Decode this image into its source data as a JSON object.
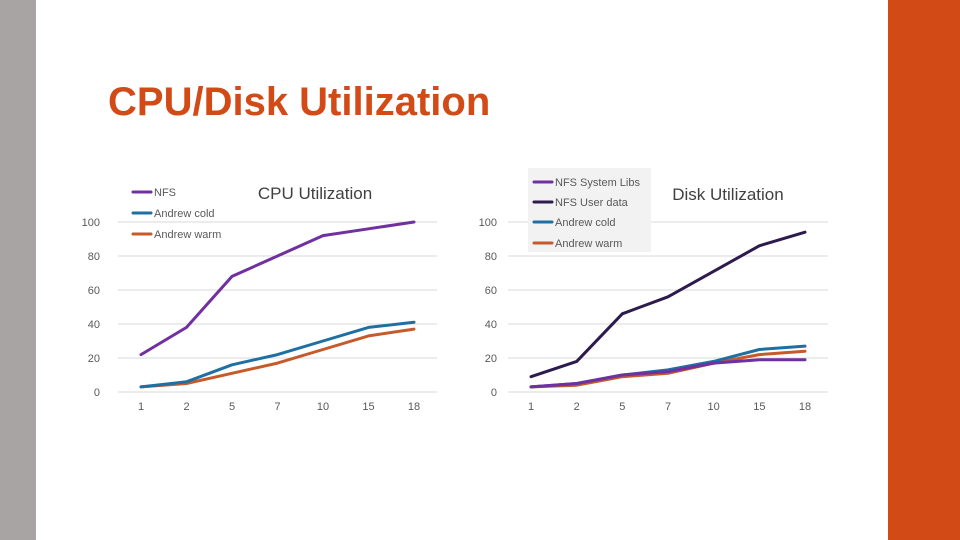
{
  "slide": {
    "title": "CPU/Disk Utilization",
    "colors": {
      "accent": "#d24b17",
      "side_bar": "#a8a4a4"
    }
  },
  "chart_data": [
    {
      "type": "line",
      "title": "CPU Utilization",
      "xlabel": "",
      "ylabel": "",
      "categories": [
        "1",
        "2",
        "5",
        "7",
        "10",
        "15",
        "18"
      ],
      "yticks": [
        "0",
        "20",
        "40",
        "60",
        "80",
        "100"
      ],
      "ylim": [
        0,
        100
      ],
      "grid": true,
      "legend_position": "top-left",
      "series": [
        {
          "name": "NFS",
          "color": "#7030a0",
          "values": [
            22,
            38,
            68,
            80,
            92,
            96,
            100
          ]
        },
        {
          "name": "Andrew cold",
          "color": "#1f6fa3",
          "values": [
            3,
            6,
            16,
            22,
            30,
            38,
            41
          ]
        },
        {
          "name": "Andrew warm",
          "color": "#c55a2b",
          "values": [
            3,
            5,
            11,
            17,
            25,
            33,
            37
          ]
        }
      ]
    },
    {
      "type": "line",
      "title": "Disk Utilization",
      "xlabel": "",
      "ylabel": "",
      "categories": [
        "1",
        "2",
        "5",
        "7",
        "10",
        "15",
        "18"
      ],
      "yticks": [
        "0",
        "20",
        "40",
        "60",
        "80",
        "100"
      ],
      "ylim": [
        0,
        100
      ],
      "grid": true,
      "legend_position": "top",
      "series": [
        {
          "name": "NFS System Libs",
          "color": "#7030a0",
          "values": [
            3,
            5,
            10,
            12,
            17,
            19,
            19
          ]
        },
        {
          "name": "NFS User data",
          "color": "#2d1b4e",
          "values": [
            9,
            18,
            46,
            56,
            71,
            86,
            94
          ]
        },
        {
          "name": "Andrew cold",
          "color": "#1f6fa3",
          "values": [
            3,
            5,
            10,
            13,
            18,
            25,
            27
          ]
        },
        {
          "name": "Andrew warm",
          "color": "#c55a2b",
          "values": [
            3,
            4,
            9,
            11,
            17,
            22,
            24
          ]
        }
      ]
    }
  ]
}
